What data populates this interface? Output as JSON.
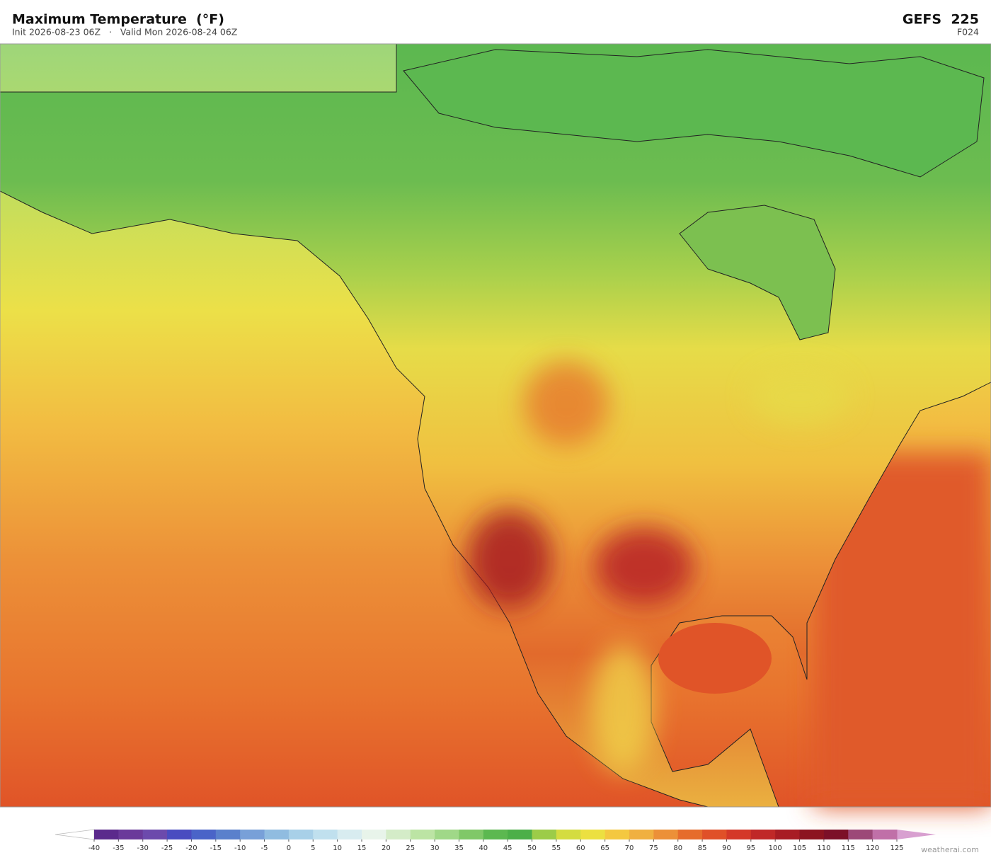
{
  "header": {
    "title": "Maximum Temperature  (°F)",
    "subtitle": "Init 2026-08-23 06Z   ·   Valid Mon 2026-08-24 06Z",
    "model": "GEFS  225",
    "forecast_hour": "F024"
  },
  "colorbar": {
    "ticks": [
      -40,
      -35,
      -30,
      -25,
      -20,
      -15,
      -10,
      -5,
      0,
      5,
      10,
      15,
      20,
      25,
      30,
      35,
      40,
      45,
      50,
      55,
      60,
      65,
      70,
      75,
      80,
      85,
      90,
      95,
      100,
      105,
      110,
      115,
      120,
      125
    ],
    "colors": [
      "#5b2a8c",
      "#6a3a9a",
      "#6c4aac",
      "#4a4cc0",
      "#4a64c8",
      "#5a80cc",
      "#78a0d8",
      "#90bce0",
      "#a8d0e8",
      "#c0e0ee",
      "#d8ecf0",
      "#e8f4ea",
      "#d4ecc8",
      "#bce4a4",
      "#a0d888",
      "#80c868",
      "#5cb850",
      "#4caf48",
      "#9ccc48",
      "#d4dc40",
      "#ece040",
      "#f4c840",
      "#f0b040",
      "#ec9038",
      "#e66c2c",
      "#e05028",
      "#d43828",
      "#c02828",
      "#a81c24",
      "#8c1420",
      "#7c1028",
      "#9c4878",
      "#c070a8"
    ],
    "under_color": "#ffffff",
    "over_color": "#d8a0d0"
  },
  "credit": "weatherai.com"
}
